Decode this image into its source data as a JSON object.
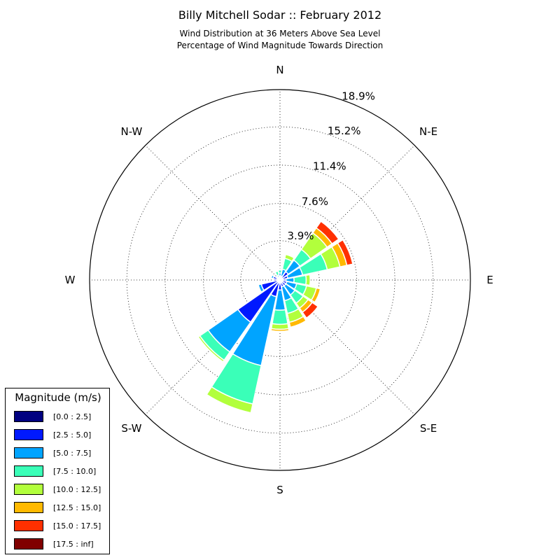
{
  "header": {
    "title": "Billy Mitchell Sodar :: February 2012",
    "subtitle1": "Wind Distribution at 36 Meters Above Sea Level",
    "subtitle2": "Percentage of Wind Magnitude Towards Direction"
  },
  "chart_data": {
    "type": "windrose",
    "directions": [
      "N",
      "N-E",
      "E",
      "S-E",
      "S",
      "S-W",
      "W",
      "N-W"
    ],
    "radial_ticks": [
      "3.9%",
      "7.6%",
      "11.4%",
      "15.2%",
      "18.9%"
    ],
    "radial_values": [
      3.9,
      7.6,
      11.4,
      15.2,
      18.9
    ],
    "rmax": 18.9,
    "sector_width_deg": 22.5,
    "legend_title": "Magnitude (m/s)",
    "bins": [
      {
        "name": "[0.0 : 2.5]",
        "color": "#000080"
      },
      {
        "name": "[2.5 : 5.0]",
        "color": "#0019ff"
      },
      {
        "name": "[5.0 : 7.5]",
        "color": "#00a4ff"
      },
      {
        "name": "[7.5 : 10.0]",
        "color": "#3affb8"
      },
      {
        "name": "[10.0 : 12.5]",
        "color": "#b2ff3c"
      },
      {
        "name": "[12.5 : 15.0]",
        "color": "#ffb900"
      },
      {
        "name": "[15.0 : 17.5]",
        "color": "#ff3000"
      },
      {
        "name": "[17.5 : inf]",
        "color": "#800000"
      }
    ],
    "sectors": [
      {
        "angle": 0,
        "values": [
          0.1,
          0.3,
          0.3,
          0.3,
          0.1,
          0,
          0,
          0
        ]
      },
      {
        "angle": 22.5,
        "values": [
          0.1,
          0.3,
          0.7,
          1.1,
          0.4,
          0.1,
          0,
          0
        ]
      },
      {
        "angle": 45,
        "values": [
          0.2,
          0.8,
          1.4,
          1.3,
          2.0,
          0.6,
          0.8,
          0
        ]
      },
      {
        "angle": 67.5,
        "values": [
          0.2,
          0.6,
          1.5,
          2.5,
          1.3,
          0.7,
          0.6,
          0
        ]
      },
      {
        "angle": 90,
        "values": [
          0.1,
          0.5,
          0.8,
          1.2,
          0.4,
          0,
          0,
          0
        ]
      },
      {
        "angle": 112.5,
        "values": [
          0.1,
          0.6,
          1.0,
          1.0,
          1.0,
          0.4,
          0,
          0
        ]
      },
      {
        "angle": 135,
        "values": [
          0.1,
          0.6,
          1.1,
          1.0,
          0.6,
          0.5,
          0.7,
          0
        ]
      },
      {
        "angle": 157.5,
        "values": [
          0.1,
          0.6,
          1.4,
          1.3,
          0.9,
          0.5,
          0,
          0
        ]
      },
      {
        "angle": 180,
        "values": [
          0.1,
          0.9,
          2.0,
          1.4,
          0.5,
          0.2,
          0,
          0
        ]
      },
      {
        "angle": 202.5,
        "values": [
          0.1,
          1.6,
          7.0,
          3.9,
          0.9,
          0,
          0,
          0
        ]
      },
      {
        "angle": 225,
        "values": [
          0.1,
          5.0,
          3.6,
          1.0,
          0.2,
          0,
          0,
          0
        ]
      },
      {
        "angle": 247.5,
        "values": [
          0.1,
          1.8,
          0.3,
          0,
          0,
          0,
          0,
          0
        ]
      },
      {
        "angle": 270,
        "values": [
          0.1,
          0.5,
          0,
          0,
          0,
          0,
          0,
          0
        ]
      },
      {
        "angle": 292.5,
        "values": [
          0.1,
          0.6,
          0.2,
          0,
          0,
          0,
          0,
          0
        ]
      },
      {
        "angle": 315,
        "values": [
          0.1,
          0.2,
          0.1,
          0.1,
          0,
          0,
          0,
          0
        ]
      },
      {
        "angle": 337.5,
        "values": [
          0.1,
          0.2,
          0.2,
          0.4,
          0,
          0,
          0,
          0
        ]
      }
    ]
  }
}
